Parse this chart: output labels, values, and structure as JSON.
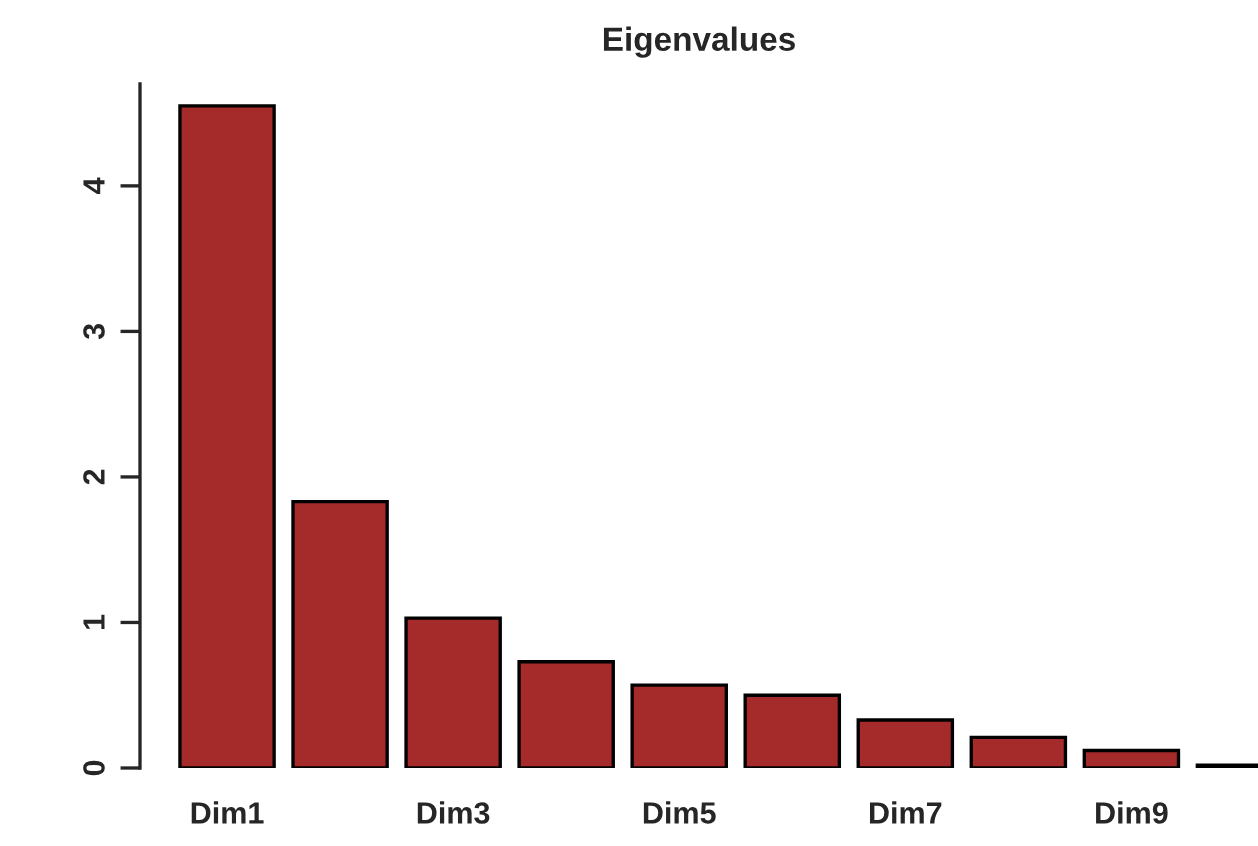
{
  "chart_data": {
    "type": "bar",
    "title": "Eigenvalues",
    "categories": [
      "Dim1",
      null,
      "Dim3",
      null,
      "Dim5",
      null,
      "Dim7",
      null,
      "Dim9",
      null
    ],
    "values": [
      4.55,
      1.83,
      1.03,
      0.73,
      0.57,
      0.5,
      0.33,
      0.21,
      0.12,
      0.02
    ],
    "color": "#a52a2a",
    "ylim": [
      0,
      4.7
    ],
    "yticks": [
      0,
      1,
      2,
      3,
      4
    ],
    "grid": false
  }
}
